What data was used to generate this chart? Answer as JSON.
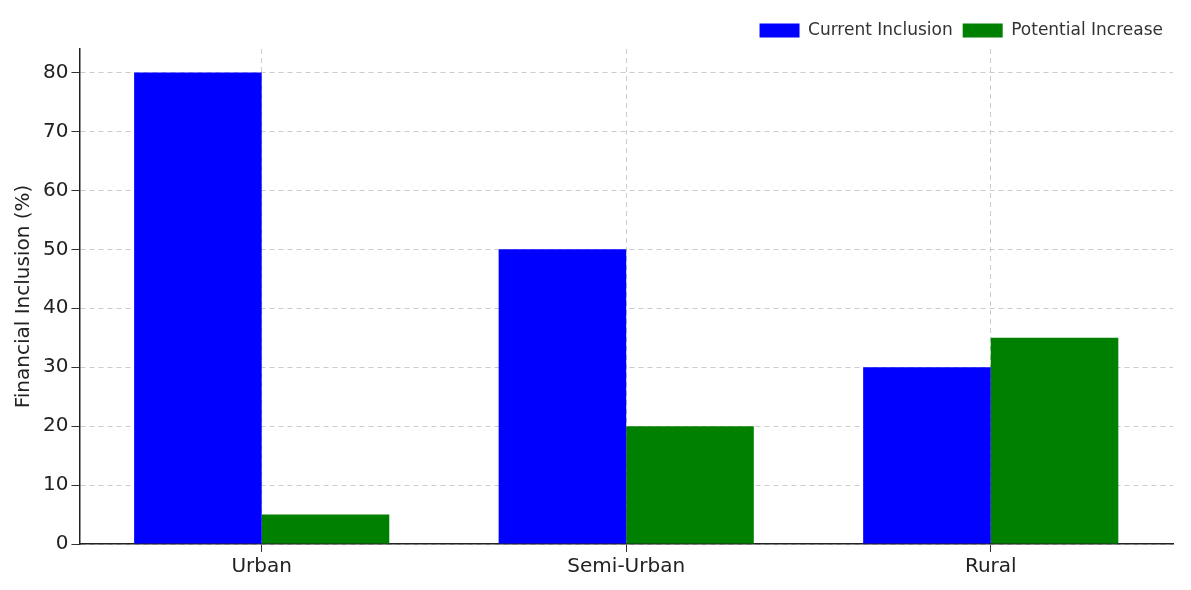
{
  "chart_data": {
    "type": "bar",
    "ylabel": "Financial Inclusion (%)",
    "categories": [
      "Urban",
      "Semi-Urban",
      "Rural"
    ],
    "series": [
      {
        "name": "Current Inclusion",
        "color": "#0000ff",
        "values": [
          80,
          50,
          30
        ]
      },
      {
        "name": "Potential Increase",
        "color": "#008000",
        "values": [
          5,
          20,
          35
        ]
      }
    ],
    "ylim": [
      0,
      84
    ],
    "yticks": [
      0,
      10,
      20,
      30,
      40,
      50,
      60,
      70,
      80
    ],
    "grid": true,
    "legend": "top right"
  }
}
